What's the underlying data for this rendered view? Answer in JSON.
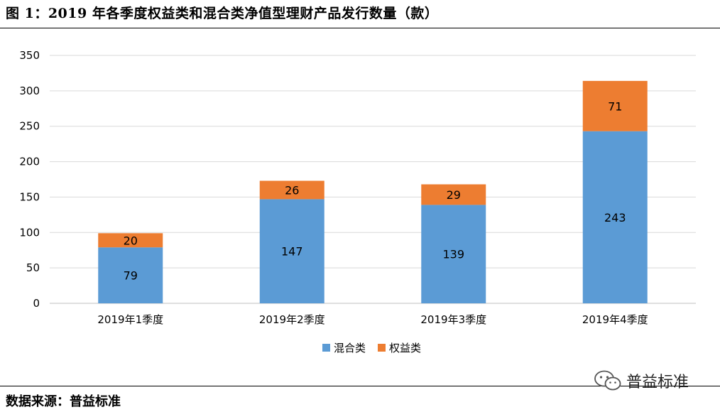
{
  "title": "图 1：2019 年各季度权益类和混合类净值型理财产品发行数量（款）",
  "source": "数据来源：普益标准",
  "watermark": {
    "icon": "wechat-icon",
    "text": "普益标准"
  },
  "colors": {
    "mixed": "#5B9BD5",
    "equity": "#ED7D31",
    "grid": "#D9D9D9",
    "axis": "#BFBFBF"
  },
  "chart_data": {
    "type": "bar",
    "stacked": true,
    "categories": [
      "2019年1季度",
      "2019年2季度",
      "2019年3季度",
      "2019年4季度"
    ],
    "series": [
      {
        "name": "混合类",
        "values": [
          79,
          147,
          139,
          243
        ]
      },
      {
        "name": "权益类",
        "values": [
          20,
          26,
          29,
          71
        ]
      }
    ],
    "title": "",
    "xlabel": "",
    "ylabel": "",
    "ylim": [
      0,
      350
    ],
    "yticks": [
      0,
      50,
      100,
      150,
      200,
      250,
      300,
      350
    ],
    "grid": true,
    "legend": "bottom"
  }
}
